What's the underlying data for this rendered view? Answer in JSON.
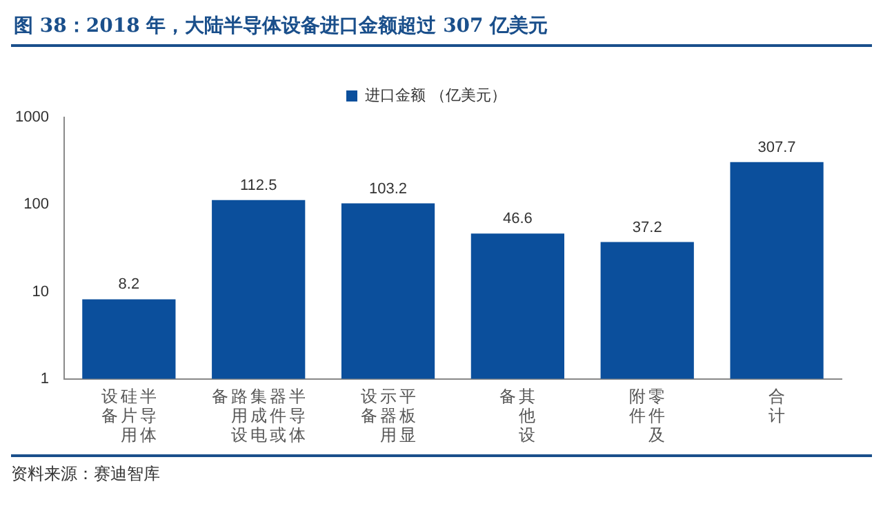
{
  "chart_data": {
    "type": "bar",
    "title": "图 38：2018 年，大陆半导体设备进口金额超过 307 亿美元",
    "categories": [
      "半导体硅片用设备",
      "半导体器件或集成电路用设备",
      "平板显示器用设备",
      "其他设备",
      "零件及附件",
      "合计"
    ],
    "series": [
      {
        "name": "进口金额 （亿美元）",
        "color": "#0b4f9c",
        "values": [
          8.2,
          112.5,
          103.2,
          46.6,
          37.2,
          307.7
        ]
      }
    ],
    "log": true,
    "ylim": [
      1,
      1000
    ],
    "yticks": [
      1,
      10,
      100,
      1000
    ],
    "grid": false,
    "legend": "top",
    "data_labels": true,
    "annotations": [
      "资料来源：赛迪智库"
    ]
  }
}
